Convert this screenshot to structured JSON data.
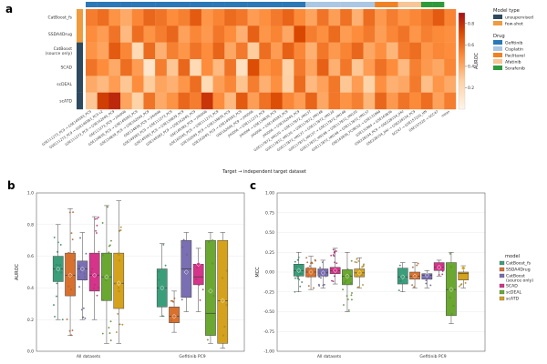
{
  "panels": {
    "a": "a",
    "b": "b",
    "c": "c"
  },
  "colors": {
    "unsupervised": "#2e4a5e",
    "few_shot": "#ef9b3f",
    "drug": {
      "Gefitinib": "#2c78b6",
      "Cisplatin": "#aac7e3",
      "Paclitaxel": "#f08223",
      "Afatinib": "#f7c596",
      "Sorafenib": "#2e9a3c"
    },
    "models": {
      "CatBoost_fs": "#3b9e7b",
      "SSDA4Drug": "#d9712e",
      "CatBoost (source only)": "#7a6fb2",
      "SCAD": "#d6338a",
      "scDEAL": "#6aa832",
      "scATD": "#d4a21c"
    }
  },
  "heatmap": {
    "rows": [
      "CatBoost_fs",
      "SSDA4Drug",
      "CatBoost\n(source only)",
      "SCAD",
      "scDEAL",
      "scATD"
    ],
    "row_types": [
      "few-shot",
      "few-shot",
      "unsupervised",
      "unsupervised",
      "unsupervised",
      "unsupervised"
    ],
    "columns": [
      "GSE111273_PC9 → GSE149383_PC9",
      "GSE111273_PC9 → GSE149383_PC9 v2",
      "GSE111273_PC9 → GSE162045_PC9",
      "GSE111273_PC9 → JHU006",
      "GSE134839_PC9 → GSE149383_PC9",
      "GSE134839_PC9 → GSE162045_PC9",
      "GSE134839_PC9 → JHU006",
      "GSE149383_PC9 → GSE111273_PC9",
      "GSE149383_PC9 → GSE134839_PC9",
      "GSE149383_PC9 → GSE162045_PC9",
      "GSE149383_PC9 → JHU006",
      "GSE162045_PC9 → GSE111273_PC9",
      "GSE162045_PC9 → GSE134839_PC9",
      "GSE162045_PC9 → GSE149383_PC9",
      "GSE162045_PC9 → JHU006",
      "JHU006 → GSE111273_PC9",
      "JHU006 → GSE134839_PC9",
      "JHU006 → GSE149383_PC9",
      "JHU006 → GSE162045_PC9",
      "GSE117872_HN120 → GSE117872_HN137",
      "GSE117872_HN120 → GSE117872_HN148",
      "GSE117872_HN137 → GSE117872_HN120",
      "GSE117872_HN137 → GSE117872_HN148",
      "GSE117872_HN148 → GSE117872_HN120",
      "GSE117872_HN148 → GSE117872_HN137",
      "GSE163836_FCIBC02 → GSE131984",
      "GSE131984 → GSE163836",
      "GSE228154_PC9 → GSE228154_JHU",
      "GSE228154_JHU → GSE228154_PC9",
      "SCC47 → GSE157220_HN",
      "GSE157220 → SCC47",
      "mean"
    ],
    "col_drugs": [
      "Gefitinib",
      "Gefitinib",
      "Gefitinib",
      "Gefitinib",
      "Gefitinib",
      "Gefitinib",
      "Gefitinib",
      "Gefitinib",
      "Gefitinib",
      "Gefitinib",
      "Gefitinib",
      "Gefitinib",
      "Gefitinib",
      "Gefitinib",
      "Gefitinib",
      "Gefitinib",
      "Gefitinib",
      "Gefitinib",
      "Gefitinib",
      "Cisplatin",
      "Cisplatin",
      "Cisplatin",
      "Cisplatin",
      "Cisplatin",
      "Cisplatin",
      "Paclitaxel",
      "Paclitaxel",
      "Afatinib",
      "Afatinib",
      "Sorafenib",
      "Sorafenib",
      ""
    ],
    "values": [
      [
        0.55,
        0.6,
        0.48,
        0.4,
        0.52,
        0.62,
        0.58,
        0.5,
        0.54,
        0.66,
        0.47,
        0.53,
        0.61,
        0.57,
        0.45,
        0.49,
        0.56,
        0.63,
        0.51,
        0.42,
        0.58,
        0.44,
        0.59,
        0.38,
        0.6,
        0.46,
        0.55,
        0.48,
        0.52,
        0.57,
        0.66,
        0.53
      ],
      [
        0.5,
        0.45,
        0.58,
        0.35,
        0.6,
        0.48,
        0.55,
        0.62,
        0.43,
        0.52,
        0.46,
        0.57,
        0.5,
        0.38,
        0.64,
        0.47,
        0.53,
        0.41,
        0.72,
        0.55,
        0.49,
        0.61,
        0.45,
        0.5,
        0.56,
        0.44,
        0.52,
        0.58,
        0.47,
        0.54,
        0.51,
        0.49
      ],
      [
        0.48,
        0.42,
        0.66,
        0.52,
        0.2,
        0.61,
        0.38,
        0.54,
        0.47,
        0.58,
        0.5,
        0.63,
        0.41,
        0.56,
        0.28,
        0.6,
        0.45,
        0.64,
        0.52,
        0.38,
        0.57,
        0.46,
        0.53,
        0.62,
        0.41,
        0.49,
        0.36,
        0.55,
        0.6,
        0.47,
        0.52,
        0.5
      ],
      [
        0.58,
        0.5,
        0.4,
        0.6,
        0.45,
        0.12,
        0.55,
        0.3,
        0.62,
        0.2,
        0.5,
        0.35,
        0.58,
        0.16,
        0.7,
        0.48,
        0.53,
        0.25,
        0.56,
        0.42,
        0.64,
        0.38,
        0.57,
        0.3,
        0.45,
        0.59,
        0.5,
        0.35,
        0.54,
        0.46,
        0.41,
        0.52
      ],
      [
        0.4,
        0.35,
        0.45,
        0.3,
        0.5,
        0.28,
        0.42,
        0.38,
        0.47,
        0.6,
        0.2,
        0.44,
        0.52,
        0.31,
        0.55,
        0.38,
        0.49,
        0.26,
        0.61,
        0.35,
        0.43,
        0.57,
        0.3,
        0.45,
        0.24,
        0.49,
        0.38,
        0.41,
        0.56,
        0.33,
        0.47,
        0.4
      ],
      [
        0.3,
        0.75,
        0.82,
        0.42,
        0.25,
        0.58,
        0.4,
        0.48,
        0.62,
        0.55,
        0.78,
        0.5,
        0.35,
        0.66,
        0.44,
        0.59,
        0.7,
        0.52,
        0.45,
        0.63,
        0.41,
        0.57,
        0.48,
        0.54,
        0.36,
        0.62,
        0.46,
        0.58,
        0.51,
        0.6,
        0.43,
        0.55
      ]
    ],
    "model_type_legend": {
      "title": "Model type",
      "items": [
        "unsupervised",
        "few-shot"
      ]
    },
    "drug_legend": {
      "title": "Drug",
      "items": [
        "Gefitinib",
        "Cisplatin",
        "Paclitaxel",
        "Afatinib",
        "Sorafenib"
      ]
    },
    "colorbar": {
      "label": "AUROC",
      "ticks": [
        "0.2",
        "0.4",
        "0.6",
        "0.8"
      ]
    },
    "xlabel": "Target → independent target dataset"
  },
  "legend_models": {
    "title": "model",
    "items": [
      "CatBoost_fs",
      "SSDA4Drug",
      "CatBoost\n(source only)",
      "SCAD",
      "scDEAL",
      "scATD"
    ]
  },
  "chart_data": [
    {
      "type": "heatmap",
      "title": "",
      "xlabel": "Target → independent target dataset",
      "ylabel": "",
      "colorbar_label": "AUROC",
      "rows": [
        "CatBoost_fs",
        "SSDA4Drug",
        "CatBoost (source only)",
        "SCAD",
        "scDEAL",
        "scATD"
      ],
      "value_range": [
        0.0,
        0.9
      ]
    },
    {
      "type": "box",
      "ylabel": "AUROC",
      "ylim": [
        0.0,
        1.0
      ],
      "yticks": [
        "0.0",
        "0.2",
        "0.4",
        "0.6",
        "0.8",
        "1.0"
      ],
      "groups": [
        "All datasets",
        "Gefitinib PC9"
      ],
      "series": [
        {
          "name": "CatBoost_fs",
          "stats": [
            [
              0.2,
              0.44,
              0.52,
              0.6,
              0.8,
              0.52
            ],
            [
              0.22,
              0.28,
              0.4,
              0.52,
              0.68,
              0.4
            ]
          ]
        },
        {
          "name": "SSDA4Drug",
          "stats": [
            [
              0.1,
              0.35,
              0.48,
              0.62,
              0.9,
              0.48
            ],
            [
              0.12,
              0.18,
              0.22,
              0.28,
              0.38,
              0.22
            ]
          ]
        },
        {
          "name": "CatBoost (source only)",
          "stats": [
            [
              0.2,
              0.45,
              0.52,
              0.57,
              0.75,
              0.52
            ],
            [
              0.25,
              0.34,
              0.52,
              0.7,
              0.75,
              0.5
            ]
          ]
        },
        {
          "name": "SCAD",
          "stats": [
            [
              0.2,
              0.38,
              0.48,
              0.62,
              0.85,
              0.48
            ],
            [
              0.25,
              0.42,
              0.47,
              0.55,
              0.65,
              0.55
            ]
          ]
        },
        {
          "name": "scDEAL",
          "stats": [
            [
              0.05,
              0.32,
              0.47,
              0.62,
              0.92,
              0.47
            ],
            [
              0.05,
              0.1,
              0.24,
              0.7,
              0.75,
              0.38
            ]
          ]
        },
        {
          "name": "scATD",
          "stats": [
            [
              0.05,
              0.27,
              0.43,
              0.62,
              0.95,
              0.43
            ],
            [
              0.02,
              0.05,
              0.32,
              0.7,
              0.75,
              0.32
            ]
          ]
        }
      ]
    },
    {
      "type": "box",
      "ylabel": "MCC",
      "ylim": [
        -1.0,
        1.0
      ],
      "yticks": [
        "-1.00",
        "-0.75",
        "-0.50",
        "-0.25",
        "0.00",
        "0.25",
        "0.50",
        "0.75",
        "1.00"
      ],
      "groups": [
        "All datasets",
        "Gefitinib PC9"
      ],
      "series": [
        {
          "name": "CatBoost_fs",
          "stats": [
            [
              -0.25,
              -0.05,
              0.02,
              0.1,
              0.25,
              0.02
            ],
            [
              -0.25,
              -0.15,
              -0.06,
              0.05,
              0.12,
              -0.06
            ]
          ]
        },
        {
          "name": "SSDA4Drug",
          "stats": [
            [
              -0.22,
              -0.06,
              0.0,
              0.05,
              0.2,
              0.0
            ],
            [
              -0.2,
              -0.09,
              -0.05,
              0.0,
              0.12,
              -0.05
            ]
          ]
        },
        {
          "name": "CatBoost (source only)",
          "stats": [
            [
              -0.2,
              -0.05,
              -0.01,
              0.04,
              0.15,
              -0.01
            ],
            [
              -0.2,
              -0.09,
              -0.04,
              -0.02,
              0.02,
              -0.04
            ]
          ]
        },
        {
          "name": "SCAD",
          "stats": [
            [
              -0.15,
              -0.02,
              0.02,
              0.06,
              0.3,
              0.02
            ],
            [
              -0.05,
              0.02,
              0.06,
              0.12,
              0.15,
              0.06
            ]
          ]
        },
        {
          "name": "scDEAL",
          "stats": [
            [
              -0.5,
              -0.16,
              -0.05,
              0.03,
              0.25,
              -0.05
            ],
            [
              -0.65,
              -0.55,
              -0.22,
              0.12,
              0.25,
              -0.22
            ]
          ]
        },
        {
          "name": "scATD",
          "stats": [
            [
              -0.2,
              -0.06,
              -0.01,
              0.04,
              0.18,
              -0.01
            ],
            [
              -0.2,
              -0.1,
              -0.02,
              0.0,
              0.08,
              0.05
            ]
          ]
        }
      ]
    }
  ]
}
